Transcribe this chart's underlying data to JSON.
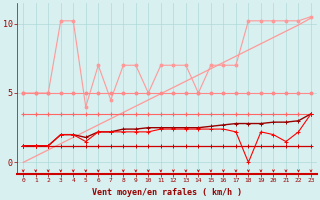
{
  "x": [
    0,
    1,
    2,
    3,
    4,
    5,
    6,
    7,
    8,
    9,
    10,
    11,
    12,
    13,
    14,
    15,
    16,
    17,
    18,
    19,
    20,
    21,
    22,
    23
  ],
  "line_linear": [
    0.0,
    0.45,
    0.9,
    1.35,
    1.8,
    2.25,
    2.7,
    3.15,
    3.6,
    4.05,
    4.5,
    4.95,
    5.4,
    5.85,
    6.3,
    6.75,
    7.2,
    7.65,
    8.1,
    8.55,
    9.0,
    9.45,
    9.9,
    10.4
  ],
  "line_zigzag": [
    5.0,
    5.0,
    5.0,
    10.2,
    10.2,
    4.0,
    7.0,
    4.5,
    7.0,
    7.0,
    5.0,
    7.0,
    7.0,
    7.0,
    5.0,
    7.0,
    7.0,
    7.0,
    10.2,
    10.2,
    10.2,
    10.2,
    10.2,
    10.5
  ],
  "line_flat_pink": [
    5.0,
    5.0,
    5.0,
    5.0,
    5.0,
    5.0,
    5.0,
    5.0,
    5.0,
    5.0,
    5.0,
    5.0,
    5.0,
    5.0,
    5.0,
    5.0,
    5.0,
    5.0,
    5.0,
    5.0,
    5.0,
    5.0,
    5.0,
    5.0
  ],
  "line_flat_med": [
    3.5,
    3.5,
    3.5,
    3.5,
    3.5,
    3.5,
    3.5,
    3.5,
    3.5,
    3.5,
    3.5,
    3.5,
    3.5,
    3.5,
    3.5,
    3.5,
    3.5,
    3.5,
    3.5,
    3.5,
    3.5,
    3.5,
    3.5,
    3.5
  ],
  "line_flat_low": [
    1.2,
    1.2,
    1.2,
    1.2,
    1.2,
    1.2,
    1.2,
    1.2,
    1.2,
    1.2,
    1.2,
    1.2,
    1.2,
    1.2,
    1.2,
    1.2,
    1.2,
    1.2,
    1.2,
    1.2,
    1.2,
    1.2,
    1.2,
    1.2
  ],
  "line_incr": [
    1.2,
    1.2,
    1.2,
    2.0,
    2.0,
    1.8,
    2.2,
    2.2,
    2.4,
    2.4,
    2.5,
    2.5,
    2.5,
    2.5,
    2.5,
    2.6,
    2.7,
    2.8,
    2.8,
    2.8,
    2.9,
    2.9,
    3.0,
    3.5
  ],
  "line_dip": [
    1.2,
    1.2,
    1.2,
    2.0,
    2.0,
    1.5,
    2.2,
    2.2,
    2.2,
    2.2,
    2.2,
    2.4,
    2.4,
    2.4,
    2.4,
    2.4,
    2.4,
    2.2,
    0.0,
    2.2,
    2.0,
    1.5,
    2.2,
    3.5
  ],
  "color_light_pink": "#FF9999",
  "color_flat_pink": "#FF8888",
  "color_medium_pink": "#FF6666",
  "color_dark_red": "#990000",
  "color_red": "#CC0000",
  "color_bright_red": "#FF0000",
  "bg_color": "#D8F0F0",
  "grid_color": "#B0D8D8",
  "xlabel": "Vent moyen/en rafales ( km/h )",
  "yticks": [
    0,
    5,
    10
  ],
  "xlim": [
    -0.5,
    23.5
  ],
  "ylim": [
    -0.8,
    11.5
  ]
}
